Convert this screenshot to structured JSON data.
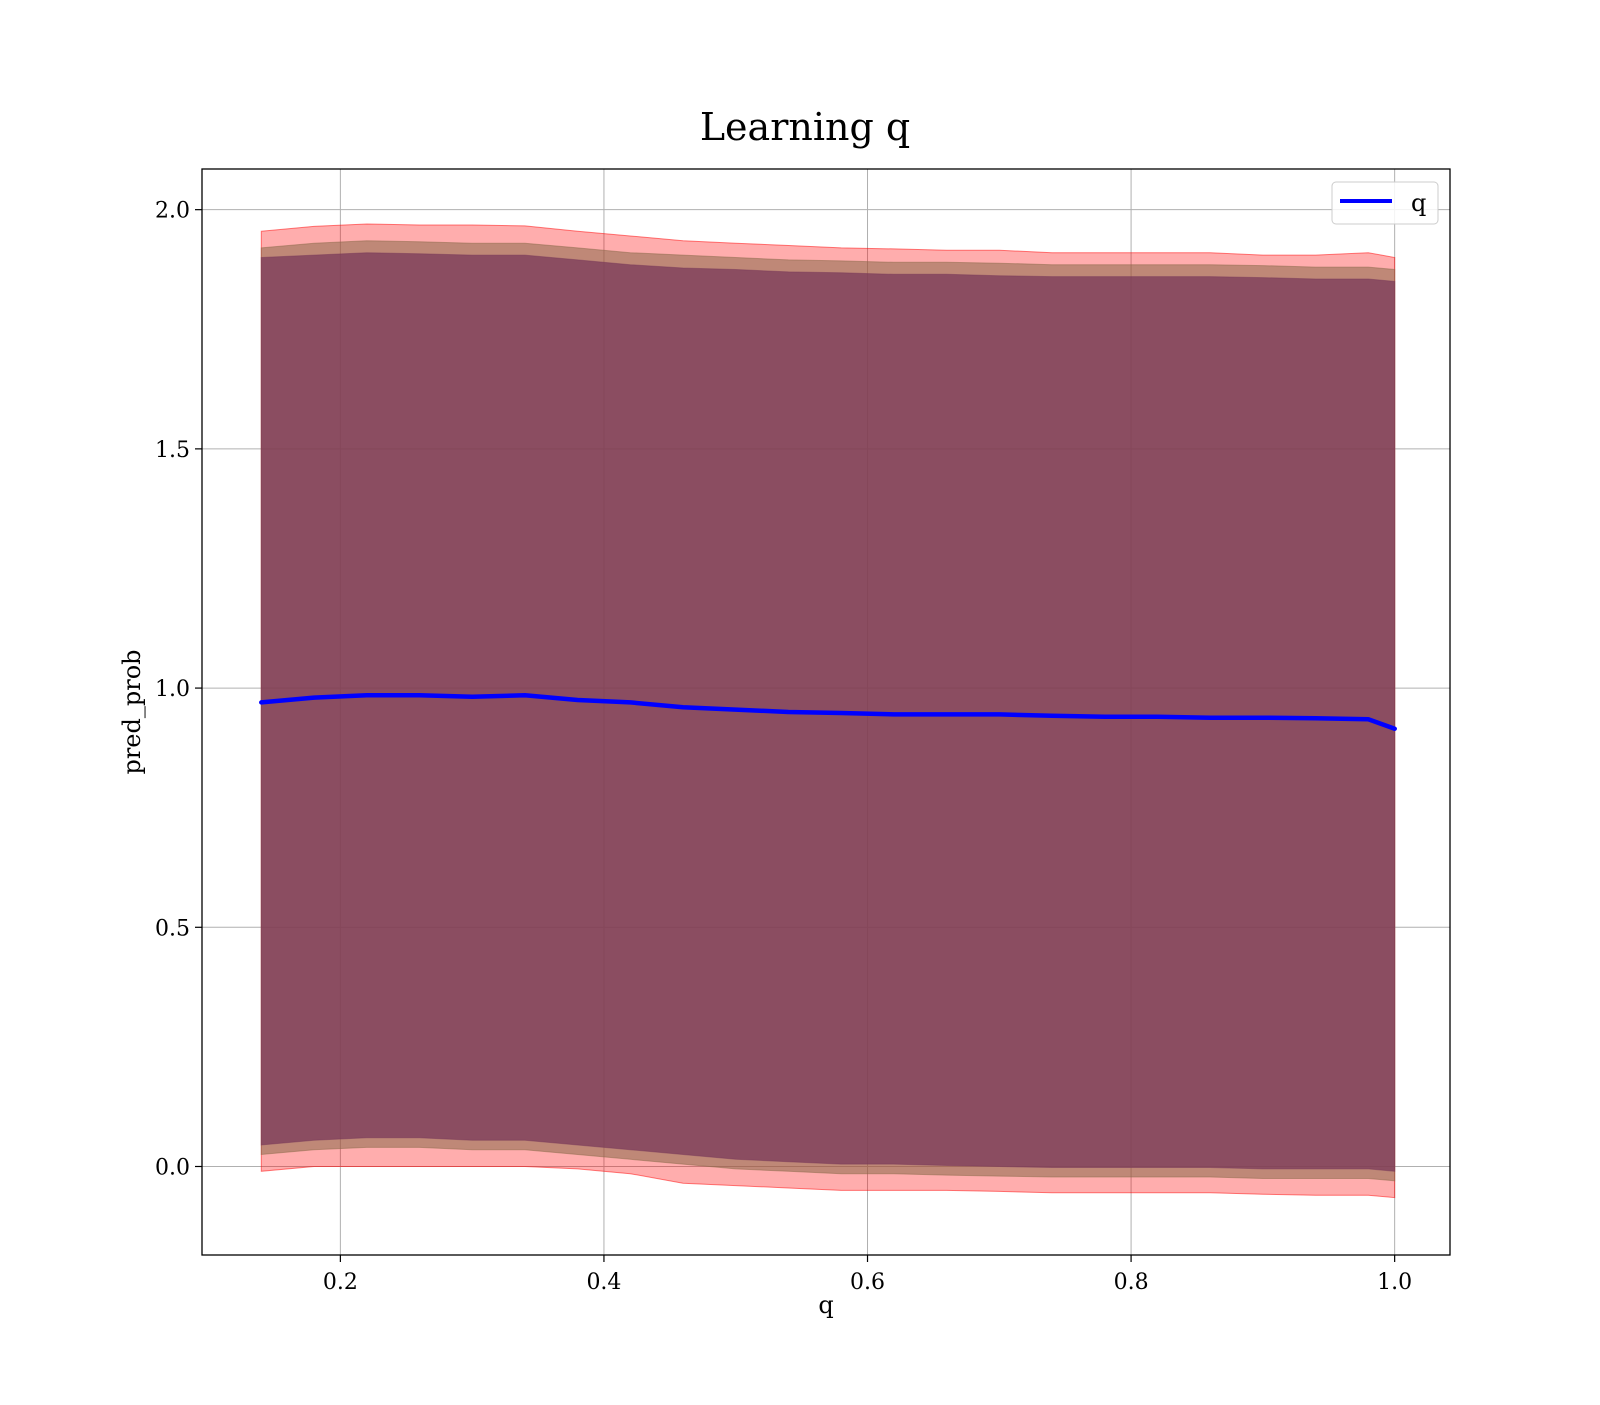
{
  "chart_data": {
    "type": "area",
    "title": "Learning q",
    "xlabel": "q",
    "ylabel": "pred_prob",
    "xlim": [
      0.095,
      1.042
    ],
    "ylim": [
      -0.185,
      2.085
    ],
    "x_ticks": [
      0.2,
      0.4,
      0.6,
      0.8,
      1.0
    ],
    "x_tick_labels": [
      "0.2",
      "0.4",
      "0.6",
      "0.8",
      "1.0"
    ],
    "y_ticks": [
      0.0,
      0.5,
      1.0,
      1.5,
      2.0
    ],
    "y_tick_labels": [
      "0.0",
      "0.5",
      "1.0",
      "1.5",
      "2.0"
    ],
    "grid": true,
    "legend": {
      "position": "top-right",
      "entries": [
        {
          "label": "q",
          "color": "#0000ff"
        }
      ]
    },
    "x": [
      0.14,
      0.18,
      0.22,
      0.26,
      0.3,
      0.34,
      0.38,
      0.42,
      0.46,
      0.5,
      0.54,
      0.58,
      0.62,
      0.66,
      0.7,
      0.74,
      0.78,
      0.82,
      0.86,
      0.9,
      0.94,
      0.98,
      1.0
    ],
    "series": [
      {
        "name": "q",
        "color": "#0000ff",
        "values": [
          0.97,
          0.98,
          0.985,
          0.985,
          0.982,
          0.985,
          0.975,
          0.97,
          0.96,
          0.955,
          0.95,
          0.948,
          0.945,
          0.945,
          0.945,
          0.942,
          0.94,
          0.94,
          0.938,
          0.938,
          0.937,
          0.935,
          0.915
        ]
      }
    ],
    "bands": [
      {
        "color": "#ff0000",
        "upper": [
          1.955,
          1.965,
          1.97,
          1.968,
          1.968,
          1.966,
          1.955,
          1.945,
          1.935,
          1.93,
          1.925,
          1.92,
          1.918,
          1.915,
          1.915,
          1.91,
          1.91,
          1.91,
          1.91,
          1.905,
          1.905,
          1.91,
          1.9
        ],
        "lower": [
          -0.01,
          0.0,
          0.0,
          0.0,
          0.0,
          0.0,
          -0.005,
          -0.015,
          -0.035,
          -0.04,
          -0.045,
          -0.05,
          -0.05,
          -0.05,
          -0.052,
          -0.055,
          -0.055,
          -0.055,
          -0.055,
          -0.058,
          -0.06,
          -0.06,
          -0.065
        ]
      },
      {
        "color": "#8b6a4a",
        "upper": [
          1.92,
          1.93,
          1.935,
          1.933,
          1.93,
          1.93,
          1.92,
          1.91,
          1.905,
          1.9,
          1.895,
          1.893,
          1.89,
          1.89,
          1.888,
          1.885,
          1.885,
          1.885,
          1.885,
          1.883,
          1.88,
          1.88,
          1.875
        ],
        "lower": [
          0.025,
          0.035,
          0.04,
          0.04,
          0.035,
          0.035,
          0.025,
          0.015,
          0.005,
          -0.005,
          -0.01,
          -0.015,
          -0.015,
          -0.018,
          -0.02,
          -0.022,
          -0.022,
          -0.022,
          -0.022,
          -0.025,
          -0.025,
          -0.025,
          -0.03
        ]
      },
      {
        "color": "#7a3a5a",
        "upper": [
          1.9,
          1.905,
          1.91,
          1.908,
          1.905,
          1.905,
          1.895,
          1.885,
          1.878,
          1.875,
          1.87,
          1.868,
          1.865,
          1.865,
          1.862,
          1.86,
          1.86,
          1.86,
          1.86,
          1.858,
          1.855,
          1.855,
          1.85
        ],
        "lower": [
          0.045,
          0.055,
          0.06,
          0.06,
          0.055,
          0.055,
          0.045,
          0.035,
          0.025,
          0.015,
          0.01,
          0.005,
          0.005,
          0.002,
          0.0,
          -0.002,
          -0.002,
          -0.002,
          -0.002,
          -0.005,
          -0.005,
          -0.005,
          -0.01
        ]
      }
    ]
  }
}
